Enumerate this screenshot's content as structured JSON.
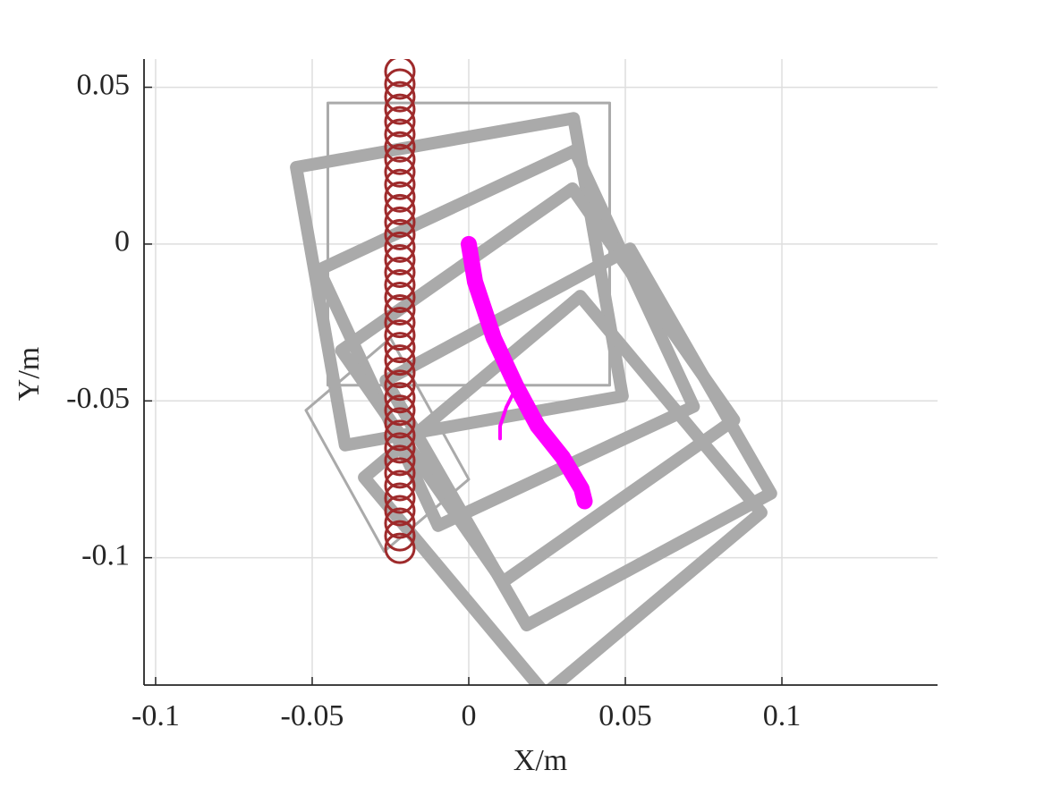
{
  "chart_data": {
    "type": "line",
    "x_label": "X/m",
    "y_label": "Y/m",
    "xlim": [
      -0.1037,
      0.1497
    ],
    "ylim": [
      -0.1406,
      0.059
    ],
    "xticks": [
      -0.1,
      -0.05,
      0,
      0.05,
      0.1
    ],
    "yticks": [
      0.05,
      0,
      -0.05,
      -0.1
    ],
    "grid": true,
    "series": [
      {
        "color": "#aaaaaa",
        "line_width": 3,
        "closed": true,
        "x": [
          -0.045,
          0.045,
          0.045,
          -0.045
        ],
        "y": [
          0.045,
          0.045,
          -0.045,
          -0.045
        ]
      },
      {
        "color": "#aaaaaa",
        "line_width": 14,
        "closed": true,
        "x": [
          -0.0551,
          0.0335,
          0.0491,
          -0.0395
        ],
        "y": [
          0.0245,
          0.0401,
          -0.0485,
          -0.0641
        ]
      },
      {
        "color": "#aaaaaa",
        "line_width": 14,
        "closed": true,
        "x": [
          -0.0478,
          0.0338,
          0.0718,
          -0.0098
        ],
        "y": [
          -0.0082,
          0.0298,
          -0.0518,
          -0.0898
        ]
      },
      {
        "color": "#aaaaaa",
        "line_width": 14,
        "closed": true,
        "x": [
          -0.0407,
          0.0331,
          0.0847,
          0.0109
        ],
        "y": [
          -0.0339,
          0.0177,
          -0.0561,
          -0.1077
        ]
      },
      {
        "color": "#aaaaaa",
        "line_width": 14,
        "closed": true,
        "x": [
          -0.0265,
          0.0515,
          0.0965,
          0.0185
        ],
        "y": [
          -0.0435,
          -0.0015,
          -0.0795,
          -0.1215
        ]
      },
      {
        "color": "#aaaaaa",
        "line_width": 14,
        "closed": true,
        "x": [
          -0.0334,
          0.0356,
          0.0934,
          0.0244
        ],
        "y": [
          -0.0744,
          -0.0166,
          -0.0856,
          -0.1434
        ]
      },
      {
        "color": "#aaaaaa",
        "line_width": 3,
        "closed": true,
        "x": [
          -0.052,
          -0.025,
          0.0,
          -0.027
        ],
        "y": [
          -0.053,
          -0.03,
          -0.075,
          -0.098
        ]
      },
      {
        "color": "#ff00ff",
        "line_width": 18,
        "closed": false,
        "x": [
          0,
          0.002,
          0.008,
          0.015,
          0.022,
          0.03,
          0.036,
          0.037
        ],
        "y": [
          0,
          -0.012,
          -0.03,
          -0.045,
          -0.058,
          -0.068,
          -0.078,
          -0.082
        ]
      },
      {
        "color": "#ff00ff",
        "line_width": 4,
        "closed": false,
        "x": [
          0.014,
          0.012,
          0.01,
          0.01
        ],
        "y": [
          -0.048,
          -0.052,
          -0.058,
          -0.062
        ]
      },
      {
        "color": "#9e2a2b",
        "line_width": 3,
        "marker": "o",
        "x": [
          -0.022,
          -0.022,
          -0.022,
          -0.022,
          -0.022,
          -0.022,
          -0.022,
          -0.022,
          -0.022,
          -0.022,
          -0.022,
          -0.022,
          -0.022,
          -0.022,
          -0.022,
          -0.022,
          -0.022,
          -0.022,
          -0.022,
          -0.022,
          -0.022,
          -0.022,
          -0.022,
          -0.022,
          -0.022,
          -0.022,
          -0.022,
          -0.022,
          -0.022,
          -0.022,
          -0.022,
          -0.022,
          -0.022,
          -0.022,
          -0.022,
          -0.022,
          -0.022,
          -0.022,
          -0.022
        ],
        "y": [
          0.055,
          0.051,
          0.047,
          0.043,
          0.039,
          0.035,
          0.031,
          0.027,
          0.023,
          0.019,
          0.015,
          0.011,
          0.007,
          0.003,
          -0.001,
          -0.005,
          -0.009,
          -0.013,
          -0.017,
          -0.021,
          -0.025,
          -0.029,
          -0.033,
          -0.037,
          -0.041,
          -0.045,
          -0.049,
          -0.053,
          -0.057,
          -0.061,
          -0.065,
          -0.069,
          -0.073,
          -0.077,
          -0.081,
          -0.085,
          -0.089,
          -0.093,
          -0.097
        ]
      }
    ]
  }
}
